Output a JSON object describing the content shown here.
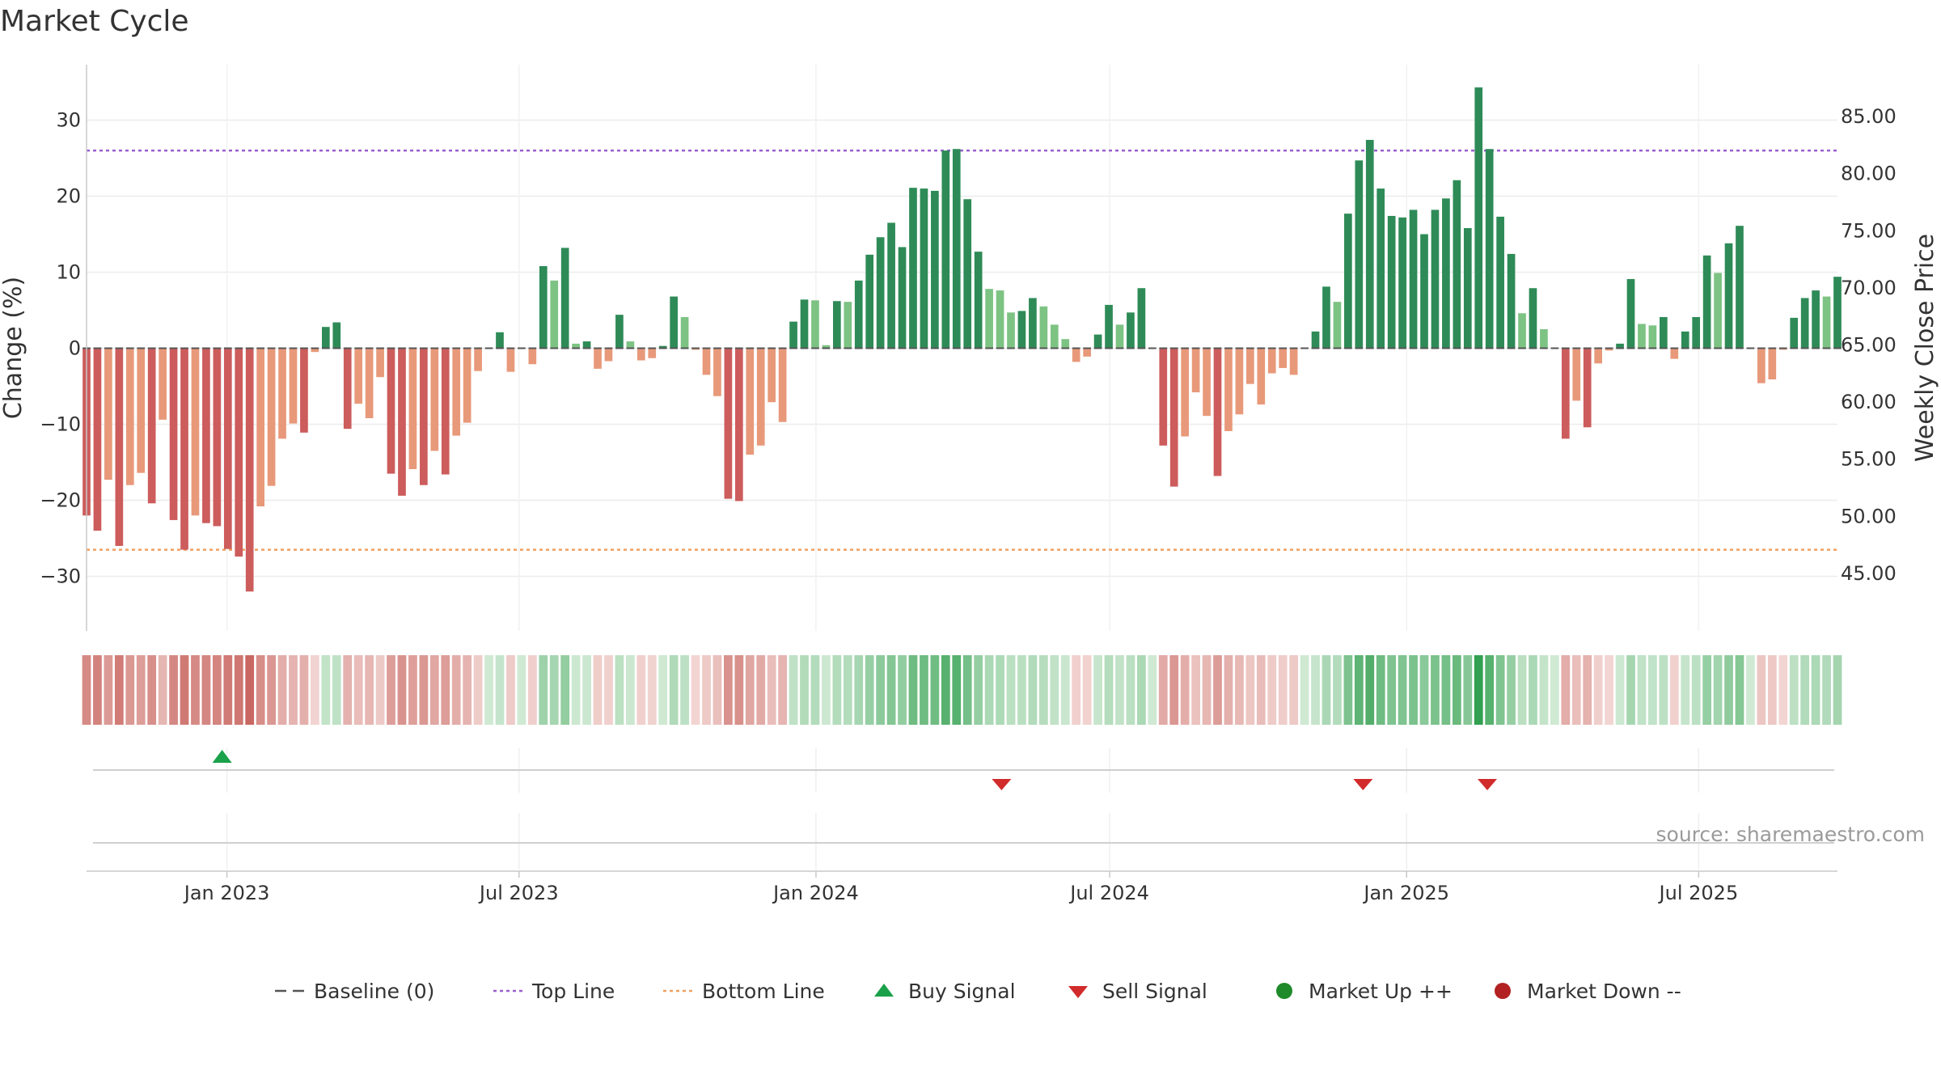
{
  "chart_data": {
    "type": "bar",
    "title": "Market Cycle",
    "ylabel": "Change (%)",
    "y2label": "Weekly Close Price",
    "ylim": [
      -36,
      37
    ],
    "y2lim": [
      40.75,
      89.35
    ],
    "yticks": [
      -30,
      -20,
      -10,
      0,
      10,
      20,
      30
    ],
    "y2ticks": [
      "45.00",
      "50.00",
      "55.00",
      "60.00",
      "65.00",
      "70.00",
      "75.00",
      "80.00",
      "85.00"
    ],
    "x_start": "2022-10-06",
    "x_end": "2025-09-25",
    "xticks": [
      {
        "date": "2023-01-01",
        "label": "Jan 2023"
      },
      {
        "date": "2023-07-01",
        "label": "Jul 2023"
      },
      {
        "date": "2024-01-01",
        "label": "Jan 2024"
      },
      {
        "date": "2024-07-01",
        "label": "Jul 2024"
      },
      {
        "date": "2025-01-01",
        "label": "Jan 2025"
      },
      {
        "date": "2025-07-01",
        "label": "Jul 2025"
      }
    ],
    "top_line": 26,
    "bottom_line": -26.5,
    "source_text": "source: sharemaestro.com",
    "colors": {
      "strong_up": "#2e8b57",
      "weak_up": "#7dc383",
      "weak_down": "#e8997a",
      "strong_down": "#cd5c5c",
      "top_line": "#9a5fcf",
      "bottom_line": "#f0a060",
      "baseline": "#555555",
      "buy": "#1aa14a",
      "sell": "#d22b2b",
      "market_up": "#1f8a2a",
      "market_down": "#b22222"
    },
    "series": [
      {
        "name": "Change (%)",
        "start_date": "2022-10-06",
        "interval_days": 7,
        "values": [
          -22,
          -24,
          -17.3,
          -26,
          -18,
          -16.4,
          -20.4,
          -9.4,
          -22.6,
          -26.5,
          -22,
          -23,
          -23.4,
          -26.4,
          -27.4,
          -32,
          -20.8,
          -18.1,
          -11.9,
          -9.9,
          -11.1,
          -0.5,
          2.8,
          3.4,
          -10.6,
          -7.3,
          -9.2,
          -3.8,
          -16.5,
          -19.4,
          -15.9,
          -18,
          -13.5,
          -16.6,
          -11.5,
          -9.8,
          -3,
          0,
          2.1,
          -3.1,
          0,
          -2.1,
          10.8,
          8.9,
          13.2,
          0.6,
          0.9,
          -2.7,
          -1.7,
          4.4,
          0.9,
          -1.6,
          -1.3,
          0.3,
          6.8,
          4.1,
          -0.2,
          -3.5,
          -6.3,
          -19.8,
          -20.1,
          -14,
          -12.8,
          -7.1,
          -9.7,
          3.5,
          6.4,
          6.3,
          0.4,
          6.2,
          6.1,
          8.9,
          12.3,
          14.6,
          16.5,
          13.3,
          21.1,
          21,
          20.7,
          26,
          26.2,
          19.6,
          12.7,
          7.8,
          7.6,
          4.7,
          4.9,
          6.6,
          5.5,
          3.1,
          1.2,
          -1.8,
          -1.1,
          1.8,
          5.7,
          3.1,
          4.7,
          7.9,
          0,
          -12.8,
          -18.2,
          -11.6,
          -5.8,
          -8.9,
          -16.8,
          -10.9,
          -8.7,
          -4.7,
          -7.4,
          -3.3,
          -2.6,
          -3.5,
          0,
          2.2,
          8.1,
          6.1,
          17.7,
          24.7,
          27.4,
          21,
          17.4,
          17.2,
          18.2,
          15,
          18.2,
          19.7,
          22.1,
          15.8,
          34.3,
          26.2,
          17.3,
          12.4,
          4.6,
          7.9,
          2.5,
          0,
          -11.9,
          -6.9,
          -10.4,
          -2,
          -0.3,
          0.6,
          9.1,
          3.2,
          3,
          4.1,
          -1.4,
          2.2,
          4.1,
          12.2,
          9.9,
          13.8,
          16.1,
          0,
          -4.6,
          -4.1,
          -0.2,
          4,
          6.6,
          7.6,
          6.8,
          9.4
        ]
      }
    ],
    "heat_strip": "bar color intensity mirrors weekly Change (%)",
    "signals": {
      "buy": [
        "2022-12-29"
      ],
      "sell": [
        "2024-04-25",
        "2024-12-05",
        "2025-02-20"
      ]
    },
    "legend": [
      {
        "label": "Baseline (0)",
        "style": "dash",
        "color": "#555555"
      },
      {
        "label": "Top Line",
        "style": "dot",
        "color": "#9a5fcf"
      },
      {
        "label": "Bottom Line",
        "style": "dot",
        "color": "#f0a060"
      },
      {
        "label": "Buy Signal",
        "style": "triangle-up",
        "color": "#1aa14a"
      },
      {
        "label": "Sell Signal",
        "style": "triangle-down",
        "color": "#d22b2b"
      },
      {
        "label": "Market Up ++",
        "style": "circle",
        "color": "#1f8a2a"
      },
      {
        "label": "Market Down --",
        "style": "circle",
        "color": "#b22222"
      }
    ],
    "legend_position": "bottom-center",
    "grid": true
  }
}
